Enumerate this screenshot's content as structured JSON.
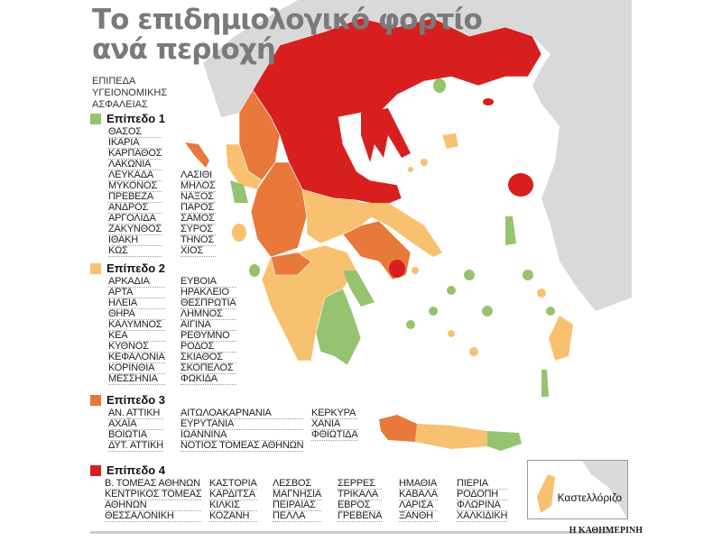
{
  "title": "Το επιδημιολογικό φορτίο ανά περιοχή",
  "title_lines": [
    "Το επιδημιολογικό φορτίο",
    "ανά περιοχή"
  ],
  "legend_heading": [
    "ΕΠΙΠΕΔΑ",
    "ΥΓΕΙΟΝΟΜΙΚΗΣ",
    "ΑΣΦΑΛΕΙΑΣ"
  ],
  "colors": {
    "level1": "#95c36f",
    "level2": "#f8c170",
    "level3": "#e8793b",
    "level4": "#d81f1f",
    "land": "#d9d9d9",
    "sea": "#ffffff"
  },
  "levels": [
    {
      "label": "Επίπεδο 1",
      "columns": [
        [
          "ΘΑΣΟΣ",
          "ΙΚΑΡΙΑ",
          "ΚΑΡΠΑΘΟΣ",
          "ΛΑΚΩΝΙΑ",
          "ΛΕΥΚΑΔΑ",
          "ΜΥΚΟΝΟΣ",
          "ΠΡΕΒΕΖΑ",
          "ΑΝΔΡΟΣ",
          "ΑΡΓΟΛΙΔΑ",
          "ΖΑΚΥΝΘΟΣ",
          "ΙΘΑΚΗ",
          "ΚΩΣ"
        ],
        [
          "ΛΑΣΙΘΙ",
          "ΜΗΛΟΣ",
          "ΝΑΞΟΣ",
          "ΠΑΡΟΣ",
          "ΣΑΜΟΣ",
          "ΣΥΡΟΣ",
          "ΤΗΝΟΣ",
          "ΧΙΟΣ"
        ]
      ]
    },
    {
      "label": "Επίπεδο 2",
      "columns": [
        [
          "ΑΡΚΑΔΙΑ",
          "ΑΡΤΑ",
          "ΗΛΕΙΑ",
          "ΘΗΡΑ",
          "ΚΑΛΥΜΝΟΣ",
          "ΚΕΑ",
          "ΚΥΘΝΟΣ",
          "ΚΕΦΑΛΟΝΙΑ",
          "ΚΟΡΙΝΘΙΑ",
          "ΜΕΣΣΗΝΙΑ"
        ],
        [
          "ΕΥΒΟΙΑ",
          "ΗΡΑΚΛΕΙΟ",
          "ΘΕΣΠΡΩΤΙΑ",
          "ΛΗΜΝΟΣ",
          "ΑΙΓΙΝΑ",
          "ΡΕΘΥΜΝΟ",
          "ΡΟΔΟΣ",
          "ΣΚΙΑΘΟΣ",
          "ΣΚΟΠΕΛΟΣ",
          "ΦΩΚΙΔΑ"
        ]
      ]
    },
    {
      "label": "Επίπεδο 3",
      "columns": [
        [
          "ΑΝ. ΑΤΤΙΚΗ",
          "ΑΧΑΪΑ",
          "ΒΟΙΩΤΙΑ",
          "ΔΥΤ. ΑΤΤΙΚΗ"
        ],
        [
          "ΑΙΤΩΛΟΑΚΑΡΝΑΝΙΑ",
          "ΕΥΡΥΤΑΝΙΑ",
          "ΙΩΑΝΝΙΝΑ",
          "ΝΟΤΙΟΣ ΤΟΜΕΑΣ ΑΘΗΝΩΝ"
        ],
        [
          "ΚΕΡΚΥΡΑ",
          "ΧΑΝΙΑ",
          "ΦΘΙΩΤΙΔΑ"
        ]
      ]
    },
    {
      "label": "Επίπεδο 4",
      "columns": [
        [
          "Β. ΤΟΜΕΑΣ ΑΘΗΝΩΝ",
          "ΚΕΝΤΡΙΚΟΣ ΤΟΜΕΑΣ",
          "ΑΘΗΝΩΝ",
          "ΘΕΣΣΑΛΟΝΙΚΗ"
        ],
        [
          "ΚΑΣΤΟΡΙΑ",
          "ΚΑΡΔΙΤΣΑ",
          "ΚΙΛΚΙΣ",
          "ΚΟΖΑΝΗ"
        ],
        [
          "ΛΕΣΒΟΣ",
          "ΜΑΓΝΗΣΙΑ",
          "ΠΕΙΡΑΙΑΣ",
          "ΠΕΛΛΑ"
        ],
        [
          "ΣΕΡΡΕΣ",
          "ΤΡΙΚΑΛΑ",
          "ΕΒΡΟΣ",
          "ΓΡΕΒΕΝΑ"
        ],
        [
          "ΗΜΑΘΙΑ",
          "ΚΑΒΑΛΑ",
          "ΛΑΡΙΣΑ",
          "ΞΑΝΘΗ"
        ],
        [
          "ΠΙΕΡΙΑ",
          "ΡΟΔΟΠΗ",
          "ΦΛΩΡΙΝΑ",
          "ΧΑΛΚΙΔΙΚΗ"
        ]
      ]
    }
  ],
  "inset_label": "Καστελλόριζο",
  "brand": "Η ΚΑΘΗΜΕΡΙΝΗ"
}
